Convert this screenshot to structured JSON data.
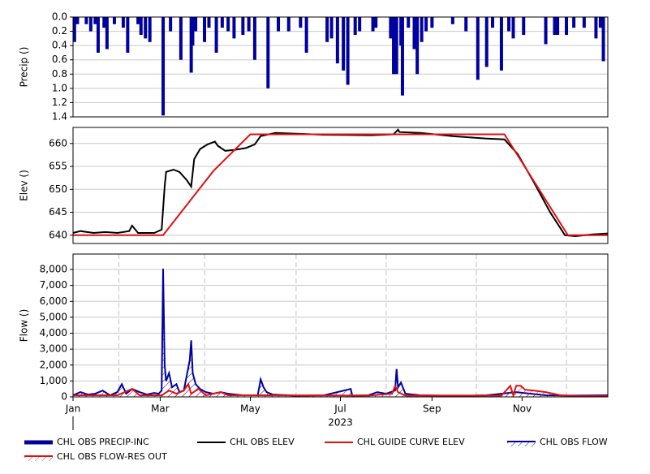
{
  "chart_data": [
    {
      "type": "bar",
      "ylabel": "Precip ()",
      "y_inverted": true,
      "xlim": [
        0,
        362
      ],
      "ylim": [
        0,
        1.4
      ],
      "yticks": [
        {
          "value": 0,
          "label": "0.0"
        },
        0.2,
        0.4,
        0.6,
        0.8,
        {
          "value": 1,
          "label": "1.0"
        },
        1.2,
        1.4
      ],
      "grid": true,
      "series": [
        {
          "name": "CHL OBS PRECIP-INC",
          "color": "#0000a0",
          "x": [
            1,
            3,
            9,
            12,
            15,
            17,
            21,
            23,
            28,
            34,
            37,
            44,
            46,
            49,
            52,
            61,
            66,
            73,
            80,
            81,
            83,
            89,
            92,
            97,
            101,
            105,
            109,
            115,
            119,
            123,
            132,
            139,
            146,
            154,
            158,
            172,
            175,
            179,
            183,
            186,
            191,
            194,
            203,
            205,
            215,
            217,
            219,
            222,
            223,
            227,
            231,
            233,
            236,
            239,
            243,
            257,
            266,
            274,
            280,
            284,
            290,
            295,
            298,
            305,
            320,
            326,
            328,
            334,
            339,
            346,
            354,
            357,
            359
          ],
          "values": [
            0.35,
            0.1,
            0.1,
            0.2,
            0.1,
            0.5,
            0.15,
            0.45,
            0.1,
            0.15,
            0.5,
            0.1,
            0.25,
            0.3,
            0.35,
            1.38,
            0.2,
            0.6,
            0.78,
            0.4,
            0.2,
            0.35,
            0.15,
            0.5,
            0.15,
            0.2,
            0.3,
            0.25,
            0.2,
            0.6,
            1.0,
            0.2,
            0.2,
            0.15,
            0.5,
            0.35,
            0.3,
            0.65,
            0.75,
            0.95,
            0.25,
            0.2,
            0.2,
            0.15,
            0.3,
            0.8,
            0.8,
            0.4,
            1.1,
            0.15,
            0.45,
            0.8,
            0.35,
            0.2,
            0.15,
            0.1,
            0.2,
            0.88,
            0.7,
            0.15,
            0.75,
            0.2,
            0.3,
            0.25,
            0.38,
            0.25,
            0.25,
            0.25,
            0.15,
            0.15,
            0.3,
            0.15,
            0.62
          ]
        }
      ]
    },
    {
      "type": "line",
      "ylabel": "Elev ()",
      "xlim": [
        0,
        362
      ],
      "ylim": [
        638.2,
        663.5
      ],
      "yticks": [
        640,
        645,
        650,
        655,
        660
      ],
      "grid": true,
      "series": [
        {
          "name": "CHL OBS ELEV",
          "color": "#000000",
          "x": [
            0,
            5,
            14,
            22,
            30,
            38,
            40,
            44,
            55,
            60,
            62,
            63,
            68,
            72,
            77,
            80,
            82,
            86,
            91,
            96,
            98,
            103,
            109,
            117,
            123,
            127,
            137,
            169,
            202,
            217,
            220,
            221,
            235,
            257,
            279,
            292,
            301,
            312,
            323,
            333,
            340,
            352,
            362
          ],
          "values": [
            640.5,
            640.9,
            640.5,
            640.7,
            640.5,
            640.9,
            642.1,
            640.5,
            640.5,
            641.2,
            650.6,
            653.8,
            654.3,
            653.8,
            652,
            650.6,
            656.6,
            658.8,
            659.8,
            660.4,
            659.5,
            658.4,
            658.6,
            659,
            659.8,
            661.6,
            662.3,
            661.9,
            661.8,
            662,
            663,
            662.5,
            662.3,
            661.6,
            661.1,
            660.9,
            657.7,
            651.5,
            645,
            640,
            639.8,
            640.2,
            640.4
          ]
        },
        {
          "name": "CHL GUIDE CURVE ELEV",
          "color": "#e01010",
          "x": [
            0,
            61,
            95,
            120,
            292,
            335,
            362
          ],
          "values": [
            640,
            640,
            654,
            662,
            662,
            640,
            640
          ]
        }
      ]
    },
    {
      "type": "area",
      "ylabel": "Flow ()",
      "xlabel": "2023",
      "xlim": [
        0,
        362
      ],
      "ylim": [
        0,
        8970
      ],
      "yticks": [
        0,
        {
          "value": 1000,
          "label": "1,000"
        },
        {
          "value": 2000,
          "label": "2,000"
        },
        {
          "value": 3000,
          "label": "3,000"
        },
        {
          "value": 4000,
          "label": "4,000"
        },
        {
          "value": 5000,
          "label": "5,000"
        },
        {
          "value": 6000,
          "label": "6,000"
        },
        {
          "value": 7000,
          "label": "7,000"
        },
        {
          "value": 8000,
          "label": "8,000"
        }
      ],
      "xticks": [
        {
          "value": 0,
          "label": "Jan"
        },
        {
          "value": 59,
          "label": "Mar"
        },
        {
          "value": 120,
          "label": "May"
        },
        {
          "value": 181,
          "label": "Jul"
        },
        {
          "value": 243,
          "label": "Sep"
        },
        {
          "value": 304,
          "label": "Nov"
        }
      ],
      "xgrid_minor": [
        31,
        89,
        151,
        212,
        273,
        334
      ],
      "grid": true,
      "series": [
        {
          "name": "CHL OBS FLOW",
          "color": "#0000a0",
          "x": [
            0,
            5,
            10,
            15,
            20,
            25,
            30,
            33,
            36,
            40,
            45,
            50,
            55,
            58,
            60,
            61,
            62,
            63,
            65,
            67,
            70,
            72,
            75,
            79,
            80,
            81,
            83,
            86,
            90,
            95,
            100,
            105,
            110,
            115,
            125,
            127,
            129,
            131,
            135,
            150,
            170,
            188,
            189,
            200,
            206,
            212,
            218,
            219,
            220,
            222,
            225,
            235,
            250,
            270,
            280,
            290,
            295,
            300,
            310,
            320,
            340,
            362
          ],
          "values": [
            100,
            300,
            150,
            200,
            400,
            100,
            300,
            800,
            200,
            500,
            300,
            150,
            250,
            200,
            400,
            8050,
            2000,
            1000,
            1500,
            600,
            800,
            300,
            400,
            2300,
            3550,
            1500,
            800,
            500,
            300,
            200,
            300,
            200,
            150,
            100,
            100,
            1100,
            600,
            300,
            150,
            80,
            100,
            500,
            80,
            100,
            300,
            200,
            400,
            1750,
            600,
            900,
            200,
            100,
            80,
            80,
            100,
            200,
            250,
            300,
            200,
            100,
            80,
            100
          ]
        },
        {
          "name": "CHL OBS FLOW-RES OUT",
          "color": "#e01010",
          "x": [
            0,
            30,
            40,
            45,
            60,
            65,
            70,
            75,
            78,
            80,
            85,
            90,
            100,
            105,
            125,
            200,
            216,
            218,
            220,
            225,
            290,
            296,
            298,
            300,
            303,
            306,
            312,
            320,
            330,
            340,
            362
          ],
          "values": [
            100,
            100,
            500,
            100,
            100,
            400,
            200,
            400,
            800,
            200,
            500,
            100,
            300,
            100,
            100,
            80,
            200,
            700,
            300,
            80,
            80,
            700,
            100,
            700,
            700,
            450,
            400,
            300,
            100,
            50,
            50
          ]
        }
      ]
    }
  ]
}
